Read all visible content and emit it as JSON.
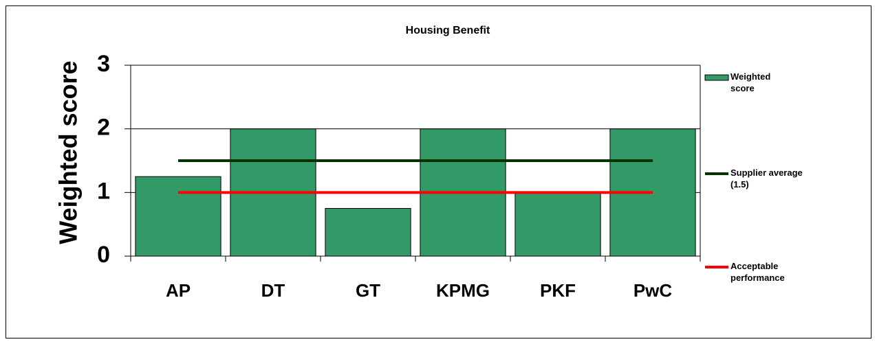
{
  "chart_data": {
    "type": "bar",
    "title": "Housing Benefit",
    "y_label": "Weighted score",
    "categories": [
      "AP",
      "DT",
      "GT",
      "KPMG",
      "PKF",
      "PwC"
    ],
    "series": [
      {
        "name": "Weighted score",
        "type": "bar",
        "color": "#339966",
        "values": [
          1.25,
          2,
          0.75,
          2,
          1,
          2
        ]
      },
      {
        "name": "Supplier average (1.5)",
        "type": "line",
        "color": "#003300",
        "values": [
          1.5,
          1.5,
          1.5,
          1.5,
          1.5,
          1.5
        ]
      },
      {
        "name": "Acceptable performance",
        "type": "line",
        "color": "#ff0000",
        "values": [
          1,
          1,
          1,
          1,
          1,
          1
        ]
      }
    ],
    "ylim": [
      0,
      3
    ],
    "yticks": [
      0,
      1,
      2,
      3
    ],
    "grid": true,
    "legend": "right"
  }
}
